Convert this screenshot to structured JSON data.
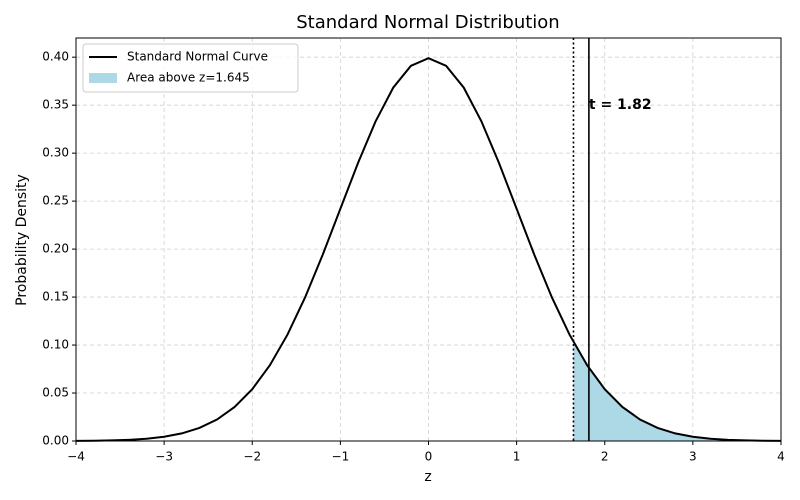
{
  "chart_data": {
    "type": "line",
    "title": "Standard Normal Distribution",
    "xlabel": "z",
    "ylabel": "Probability Density",
    "xlim": [
      -4,
      4
    ],
    "ylim": [
      0,
      0.42
    ],
    "xticks": [
      {
        "value": -4,
        "label": "−4"
      },
      {
        "value": -3,
        "label": "−3"
      },
      {
        "value": -2,
        "label": "−2"
      },
      {
        "value": -1,
        "label": "−1"
      },
      0,
      1,
      2,
      3,
      4
    ],
    "yticks": [
      {
        "value": 0,
        "label": "0.00"
      },
      {
        "value": 0.05,
        "label": "0.05"
      },
      {
        "value": 0.1,
        "label": "0.10"
      },
      {
        "value": 0.15,
        "label": "0.15"
      },
      {
        "value": 0.2,
        "label": "0.20"
      },
      {
        "value": 0.25,
        "label": "0.25"
      },
      {
        "value": 0.3,
        "label": "0.30"
      },
      {
        "value": 0.35,
        "label": "0.35"
      },
      {
        "value": 0.4,
        "label": "0.40"
      }
    ],
    "grid": true,
    "legend": "upper left",
    "series": [
      {
        "name": "Standard Normal Curve",
        "color": "#000000",
        "kind": "line",
        "x": [
          -4,
          -3.8,
          -3.6,
          -3.4,
          -3.2,
          -3,
          -2.8,
          -2.6,
          -2.4,
          -2.2,
          -2,
          -1.8,
          -1.6,
          -1.4,
          -1.2,
          -1,
          -0.8,
          -0.6,
          -0.4,
          -0.2,
          0,
          0.2,
          0.4,
          0.6,
          0.8,
          1,
          1.2,
          1.4,
          1.6,
          1.8,
          2,
          2.2,
          2.4,
          2.6,
          2.8,
          3,
          3.2,
          3.4,
          3.6,
          3.8,
          4
        ],
        "values": [
          0.0001,
          0.0003,
          0.0006,
          0.0012,
          0.0024,
          0.0044,
          0.0079,
          0.0136,
          0.0224,
          0.0355,
          0.054,
          0.079,
          0.1109,
          0.1497,
          0.1942,
          0.242,
          0.2897,
          0.3332,
          0.3683,
          0.391,
          0.3989,
          0.391,
          0.3683,
          0.3332,
          0.2897,
          0.242,
          0.1942,
          0.1497,
          0.1109,
          0.079,
          0.054,
          0.0355,
          0.0224,
          0.0136,
          0.0079,
          0.0044,
          0.0024,
          0.0012,
          0.0006,
          0.0003,
          0.0001
        ]
      },
      {
        "name": "Area above z=1.645",
        "color": "#add8e6",
        "kind": "area",
        "x": [
          1.645,
          1.8,
          2,
          2.2,
          2.4,
          2.6,
          2.8,
          3,
          3.2,
          3.4,
          3.6,
          3.8,
          4
        ],
        "values": [
          0.1031,
          0.079,
          0.054,
          0.0355,
          0.0224,
          0.0136,
          0.0079,
          0.0044,
          0.0024,
          0.0012,
          0.0006,
          0.0003,
          0.0001
        ]
      }
    ],
    "vlines": [
      {
        "x": 1.645,
        "style": "dotted",
        "color": "#000000"
      },
      {
        "x": 1.82,
        "style": "solid",
        "color": "#000000"
      }
    ],
    "annotation": {
      "text": "t = 1.82",
      "x": 1.82,
      "y": 0.35,
      "color": "#0000cd"
    }
  }
}
